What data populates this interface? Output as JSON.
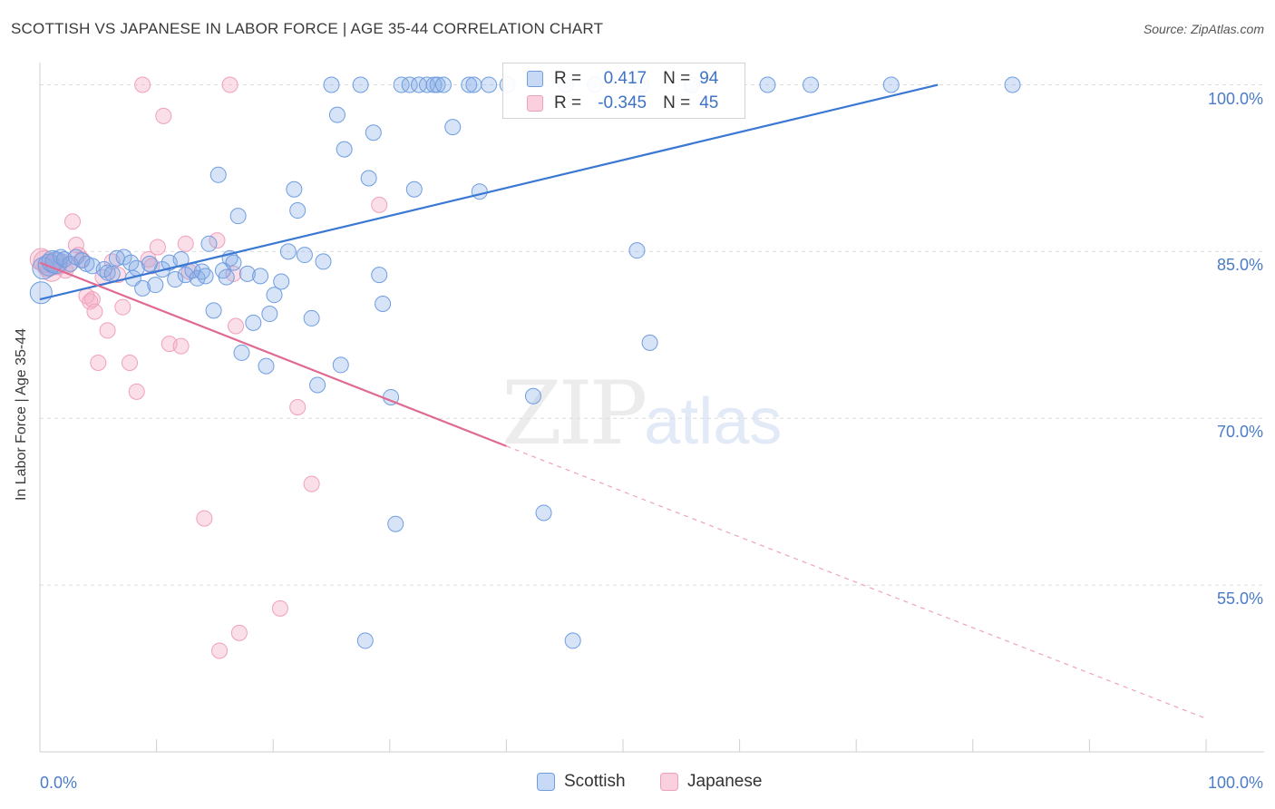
{
  "header": {
    "title": "SCOTTISH VS JAPANESE IN LABOR FORCE | AGE 35-44 CORRELATION CHART",
    "source": "Source: ZipAtlas.com"
  },
  "watermark": {
    "zip": "ZIP",
    "atlas": "atlas"
  },
  "legend": {
    "scottish": {
      "r_label": "R =",
      "r_value": "0.417",
      "n_label": "N =",
      "n_value": "94"
    },
    "japanese": {
      "r_label": "R =",
      "r_value": "-0.345",
      "n_label": "N =",
      "n_value": "45"
    }
  },
  "bottom_legend": {
    "scottish": "Scottish",
    "japanese": "Japanese"
  },
  "chart_data": {
    "type": "scatter",
    "title": "SCOTTISH VS JAPANESE IN LABOR FORCE | AGE 35-44 CORRELATION CHART",
    "xlabel": "",
    "ylabel": "In Labor Force | Age 35-44",
    "xlim": [
      0,
      100
    ],
    "ylim": [
      40,
      102
    ],
    "x_tick_labels": [
      "0.0%",
      "100.0%"
    ],
    "y_ticks": [
      {
        "value": 55,
        "label": "55.0%"
      },
      {
        "value": 70,
        "label": "70.0%"
      },
      {
        "value": 85,
        "label": "85.0%"
      },
      {
        "value": 100,
        "label": "100.0%"
      }
    ],
    "grid": "horizontal dashed",
    "legend_position": "top-center",
    "colors": {
      "scottish": "#6f9de0",
      "japanese": "#f0a0bb",
      "scottish_line": "#3a78d4",
      "japanese_line": "#e06a92"
    },
    "series": [
      {
        "name": "Scottish",
        "r": 0.417,
        "n": 94,
        "trend": {
          "x": [
            0,
            77
          ],
          "y": [
            80.7,
            100
          ]
        },
        "points": [
          [
            0.1,
            81.3
          ],
          [
            0.3,
            83.5
          ],
          [
            0.8,
            83.8
          ],
          [
            1.1,
            84.1
          ],
          [
            1.4,
            84.0
          ],
          [
            1.8,
            84.5
          ],
          [
            2.1,
            84.3
          ],
          [
            2.6,
            83.9
          ],
          [
            3.1,
            84.5
          ],
          [
            3.6,
            84.2
          ],
          [
            4.0,
            83.9
          ],
          [
            4.5,
            83.7
          ],
          [
            5.5,
            83.4
          ],
          [
            5.8,
            83.1
          ],
          [
            6.2,
            83.0
          ],
          [
            6.6,
            84.4
          ],
          [
            7.2,
            84.5
          ],
          [
            7.8,
            84.0
          ],
          [
            8.0,
            82.6
          ],
          [
            8.3,
            83.5
          ],
          [
            8.8,
            81.7
          ],
          [
            9.4,
            83.9
          ],
          [
            9.9,
            82.0
          ],
          [
            10.5,
            83.4
          ],
          [
            11.1,
            84.0
          ],
          [
            11.6,
            82.5
          ],
          [
            12.1,
            84.3
          ],
          [
            12.5,
            82.9
          ],
          [
            13.1,
            83.3
          ],
          [
            13.5,
            82.6
          ],
          [
            13.9,
            83.2
          ],
          [
            14.2,
            82.8
          ],
          [
            14.5,
            85.7
          ],
          [
            14.9,
            79.7
          ],
          [
            15.3,
            91.9
          ],
          [
            15.7,
            83.3
          ],
          [
            16.0,
            82.7
          ],
          [
            16.3,
            84.4
          ],
          [
            16.6,
            84.0
          ],
          [
            17.0,
            88.2
          ],
          [
            17.3,
            75.9
          ],
          [
            17.8,
            83.0
          ],
          [
            18.3,
            78.6
          ],
          [
            18.9,
            82.8
          ],
          [
            19.4,
            74.7
          ],
          [
            19.7,
            79.4
          ],
          [
            20.1,
            81.1
          ],
          [
            20.7,
            82.3
          ],
          [
            21.3,
            85.0
          ],
          [
            21.8,
            90.6
          ],
          [
            22.1,
            88.7
          ],
          [
            22.7,
            84.7
          ],
          [
            23.3,
            79.0
          ],
          [
            23.8,
            73.0
          ],
          [
            24.3,
            84.1
          ],
          [
            25.0,
            100
          ],
          [
            25.5,
            97.3
          ],
          [
            25.8,
            74.8
          ],
          [
            26.1,
            94.2
          ],
          [
            27.5,
            100
          ],
          [
            27.9,
            50.0
          ],
          [
            28.2,
            91.6
          ],
          [
            28.6,
            95.7
          ],
          [
            29.1,
            82.9
          ],
          [
            29.4,
            80.3
          ],
          [
            30.1,
            71.9
          ],
          [
            30.5,
            60.5
          ],
          [
            31.0,
            100
          ],
          [
            31.7,
            100
          ],
          [
            32.1,
            90.6
          ],
          [
            32.5,
            100
          ],
          [
            33.2,
            100
          ],
          [
            33.8,
            100
          ],
          [
            34.1,
            100
          ],
          [
            34.6,
            100
          ],
          [
            35.4,
            96.2
          ],
          [
            36.8,
            100
          ],
          [
            37.2,
            100
          ],
          [
            37.7,
            90.4
          ],
          [
            38.5,
            100
          ],
          [
            40.1,
            100
          ],
          [
            42.3,
            72.0
          ],
          [
            43.2,
            61.5
          ],
          [
            45.1,
            100
          ],
          [
            45.7,
            50.0
          ],
          [
            47.6,
            100
          ],
          [
            51.2,
            85.1
          ],
          [
            51.6,
            100
          ],
          [
            52.3,
            76.8
          ],
          [
            55.9,
            100
          ],
          [
            62.4,
            100
          ],
          [
            66.1,
            100
          ],
          [
            73.0,
            100
          ],
          [
            83.4,
            100
          ]
        ]
      },
      {
        "name": "Japanese",
        "r": -0.345,
        "n": 45,
        "trend": {
          "x": [
            0,
            40
          ],
          "y": [
            84,
            67.5
          ],
          "dashed_to": [
            100,
            43
          ]
        },
        "points": [
          [
            0.1,
            84.3
          ],
          [
            0.4,
            84.1
          ],
          [
            0.7,
            83.7
          ],
          [
            1.0,
            83.3
          ],
          [
            1.3,
            83.9
          ],
          [
            1.6,
            83.6
          ],
          [
            1.9,
            84.1
          ],
          [
            2.2,
            83.3
          ],
          [
            2.5,
            83.8
          ],
          [
            2.8,
            87.7
          ],
          [
            3.1,
            85.6
          ],
          [
            3.3,
            84.7
          ],
          [
            3.6,
            84.3
          ],
          [
            4.0,
            81.0
          ],
          [
            4.3,
            80.5
          ],
          [
            4.5,
            80.7
          ],
          [
            4.7,
            79.6
          ],
          [
            5.0,
            75.0
          ],
          [
            5.4,
            82.7
          ],
          [
            5.8,
            77.9
          ],
          [
            6.2,
            84.1
          ],
          [
            6.7,
            82.9
          ],
          [
            7.1,
            80.0
          ],
          [
            7.7,
            75.0
          ],
          [
            8.3,
            72.4
          ],
          [
            8.8,
            100
          ],
          [
            9.3,
            84.3
          ],
          [
            9.6,
            83.7
          ],
          [
            10.1,
            85.4
          ],
          [
            10.6,
            97.2
          ],
          [
            11.1,
            76.7
          ],
          [
            12.1,
            76.5
          ],
          [
            12.5,
            85.7
          ],
          [
            12.8,
            83.2
          ],
          [
            14.1,
            61.0
          ],
          [
            15.2,
            86.0
          ],
          [
            15.4,
            49.1
          ],
          [
            16.3,
            100
          ],
          [
            16.6,
            83.0
          ],
          [
            16.8,
            78.3
          ],
          [
            17.1,
            50.7
          ],
          [
            20.6,
            52.9
          ],
          [
            22.1,
            71.0
          ],
          [
            23.3,
            64.1
          ],
          [
            29.1,
            89.2
          ]
        ]
      }
    ]
  }
}
